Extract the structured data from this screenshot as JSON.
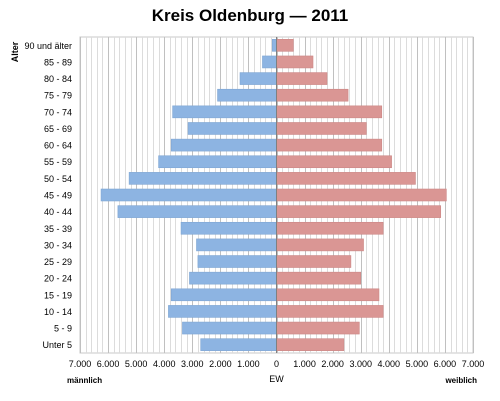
{
  "chart_data": {
    "type": "bar",
    "title": "Kreis Oldenburg — 2011",
    "ylabel": "Alter",
    "xlabel": "EW",
    "left_label": "männlich",
    "right_label": "weiblich",
    "categories": [
      "90 und älter",
      "85 - 89",
      "80 - 84",
      "75 - 79",
      "70 - 74",
      "65 - 69",
      "60 - 64",
      "55 - 59",
      "50 - 54",
      "45 - 49",
      "40 - 44",
      "35 - 39",
      "30 - 34",
      "25 - 29",
      "20 - 24",
      "15 - 19",
      "10 - 14",
      "5 - 9",
      "Unter 5"
    ],
    "series": [
      {
        "name": "männlich",
        "color": "#8db4e2",
        "values": [
          150,
          500,
          1300,
          2100,
          3700,
          3150,
          3750,
          4200,
          5250,
          6250,
          5650,
          3400,
          2850,
          2800,
          3100,
          3750,
          3850,
          3350,
          2700
        ]
      },
      {
        "name": "weiblich",
        "color": "#da9694",
        "values": [
          600,
          1300,
          1800,
          2550,
          3750,
          3200,
          3750,
          4100,
          4950,
          6050,
          5850,
          3800,
          3100,
          2650,
          3000,
          3650,
          3800,
          2950,
          2400
        ]
      }
    ],
    "xlim": [
      -7000,
      7000
    ],
    "x_ticks": [
      {
        "value": -7000,
        "label": "7.000"
      },
      {
        "value": -6000,
        "label": "6.000"
      },
      {
        "value": -5000,
        "label": "5.000"
      },
      {
        "value": -4000,
        "label": "4.000"
      },
      {
        "value": -3000,
        "label": "3.000"
      },
      {
        "value": -2000,
        "label": "2.000"
      },
      {
        "value": -1000,
        "label": "1.000"
      },
      {
        "value": 0,
        "label": "0"
      },
      {
        "value": 1000,
        "label": "1.000"
      },
      {
        "value": 2000,
        "label": "2.000"
      },
      {
        "value": 3000,
        "label": "3.000"
      },
      {
        "value": 4000,
        "label": "4.000"
      },
      {
        "value": 5000,
        "label": "5.000"
      },
      {
        "value": 6000,
        "label": "6.000"
      },
      {
        "value": 7000,
        "label": "7.000"
      }
    ],
    "grid": true,
    "legend": "none"
  }
}
